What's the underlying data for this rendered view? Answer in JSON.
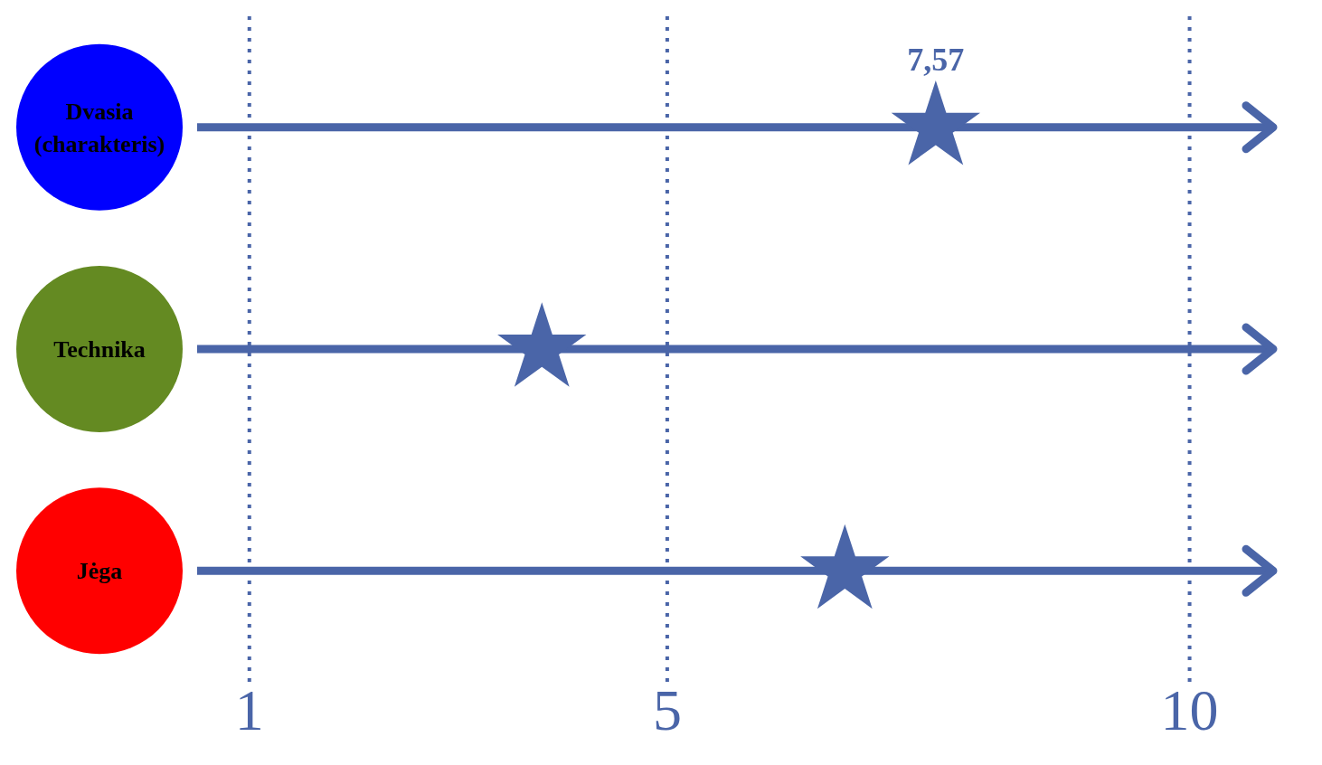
{
  "chart_data": {
    "type": "scatter",
    "orientation": "horizontal",
    "categories": [
      "Dvasia (charakteris)",
      "Technika",
      "Jėga"
    ],
    "values": [
      7.57,
      3.8,
      6.7
    ],
    "value_labels": [
      "7,57",
      null,
      null
    ],
    "color": "#4a65a8",
    "marker": "star",
    "xlim": [
      0.5,
      10.8
    ],
    "xticks": [
      1,
      5,
      10
    ],
    "grid": true,
    "legend": false
  }
}
